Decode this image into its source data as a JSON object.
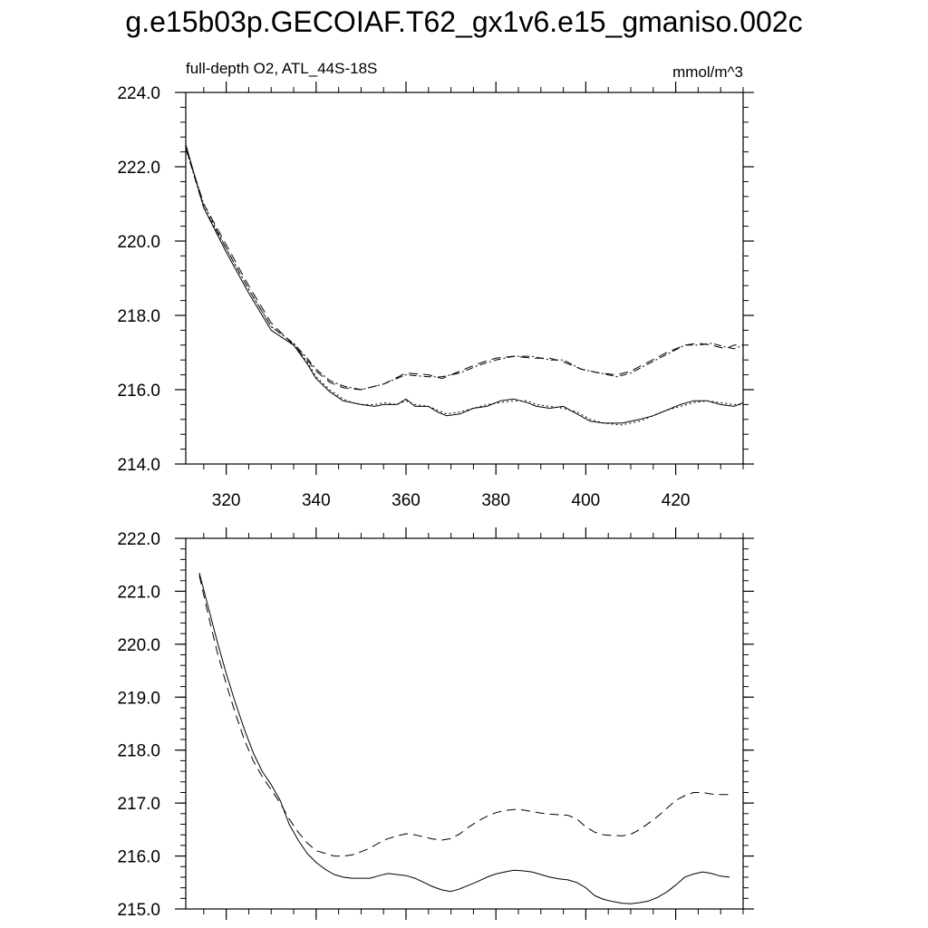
{
  "title": "g.e15b03p.GECOIAF.T62_gx1v6.e15_gmaniso.002c",
  "subtitle_left": "full-depth O2, ATL_44S-18S",
  "units": "mmol/m^3",
  "chart_data": [
    {
      "type": "line",
      "panel": "top",
      "xlim": [
        311,
        435
      ],
      "ylim": [
        214.0,
        224.0
      ],
      "xticks": [
        320,
        340,
        360,
        380,
        400,
        420
      ],
      "xtick_labels": [
        "320",
        "340",
        "360",
        "380",
        "400",
        "420"
      ],
      "yticks": [
        214,
        216,
        218,
        220,
        222,
        224
      ],
      "ytick_labels": [
        "214.0",
        "216.0",
        "218.0",
        "220.0",
        "222.0",
        "224.0"
      ],
      "series": [
        {
          "name": "solid",
          "dash": "none",
          "x": [
            311,
            315,
            320,
            325,
            330,
            335,
            338,
            340,
            343,
            346,
            348,
            350,
            353,
            355,
            358,
            360,
            362,
            365,
            367,
            369,
            372,
            375,
            378,
            381,
            384,
            387,
            389,
            392,
            395,
            398,
            401,
            404,
            408,
            412,
            415,
            418,
            421,
            424,
            427,
            430,
            433,
            435
          ],
          "y": [
            222.6,
            220.9,
            219.7,
            218.6,
            217.6,
            217.2,
            216.7,
            216.3,
            215.95,
            215.7,
            215.65,
            215.6,
            215.55,
            215.6,
            215.6,
            215.75,
            215.55,
            215.55,
            215.4,
            215.3,
            215.35,
            215.5,
            215.55,
            215.7,
            215.75,
            215.65,
            215.55,
            215.5,
            215.55,
            215.35,
            215.15,
            215.1,
            215.1,
            215.2,
            215.3,
            215.45,
            215.6,
            215.7,
            215.7,
            215.6,
            215.55,
            215.65
          ]
        },
        {
          "name": "solid-dotted",
          "dash": "2,3",
          "x": [
            311,
            315,
            320,
            325,
            330,
            335,
            338,
            340,
            343,
            346,
            348,
            350,
            353,
            355,
            358,
            360,
            362,
            365,
            367,
            369,
            372,
            375,
            378,
            381,
            384,
            387,
            389,
            392,
            395,
            398,
            401,
            404,
            408,
            412,
            415,
            418,
            421,
            424,
            427,
            430,
            433,
            435
          ],
          "y": [
            222.5,
            221.0,
            219.8,
            218.7,
            217.7,
            217.25,
            216.75,
            216.35,
            216.0,
            215.75,
            215.65,
            215.6,
            215.6,
            215.65,
            215.6,
            215.7,
            215.6,
            215.55,
            215.45,
            215.35,
            215.4,
            215.5,
            215.6,
            215.65,
            215.7,
            215.7,
            215.6,
            215.55,
            215.5,
            215.4,
            215.2,
            215.1,
            215.05,
            215.15,
            215.3,
            215.45,
            215.55,
            215.65,
            215.7,
            215.65,
            215.6,
            215.6
          ]
        },
        {
          "name": "dashed",
          "dash": "10,6",
          "x": [
            311,
            315,
            320,
            325,
            330,
            335,
            338,
            340,
            343,
            346,
            350,
            355,
            360,
            365,
            368,
            372,
            376,
            380,
            384,
            388,
            392,
            395,
            399,
            403,
            407,
            410,
            414,
            418,
            422,
            425,
            428,
            431,
            433,
            435
          ],
          "y": [
            222.5,
            221.0,
            219.9,
            218.8,
            217.8,
            217.2,
            216.8,
            216.5,
            216.2,
            216.05,
            216.0,
            216.15,
            216.45,
            216.4,
            216.3,
            216.5,
            216.7,
            216.85,
            216.9,
            216.85,
            216.85,
            216.75,
            216.55,
            216.45,
            216.4,
            216.5,
            216.75,
            217.0,
            217.2,
            217.25,
            217.2,
            217.1,
            217.2,
            217.2
          ]
        },
        {
          "name": "dash-dot",
          "dash": "8,3,2,3",
          "x": [
            311,
            315,
            320,
            325,
            330,
            335,
            338,
            340,
            343,
            346,
            350,
            355,
            360,
            365,
            368,
            372,
            376,
            380,
            384,
            388,
            392,
            395,
            399,
            403,
            407,
            410,
            414,
            418,
            422,
            425,
            428,
            431,
            433,
            435
          ],
          "y": [
            222.5,
            220.9,
            219.8,
            218.7,
            217.7,
            217.25,
            216.85,
            216.55,
            216.25,
            216.1,
            216.0,
            216.15,
            216.4,
            216.35,
            216.35,
            216.45,
            216.65,
            216.8,
            216.9,
            216.9,
            216.8,
            216.8,
            216.55,
            216.45,
            216.35,
            216.45,
            216.7,
            216.95,
            217.2,
            217.2,
            217.25,
            217.15,
            217.1,
            217.2
          ]
        }
      ]
    },
    {
      "type": "line",
      "panel": "bottom",
      "xlim": [
        311,
        435
      ],
      "ylim": [
        215.0,
        222.0
      ],
      "xticks": [
        320,
        340,
        360,
        380,
        400,
        420
      ],
      "xtick_labels": [],
      "yticks": [
        215,
        216,
        217,
        218,
        219,
        220,
        221,
        222
      ],
      "ytick_labels": [
        "215.0",
        "216.0",
        "217.0",
        "218.0",
        "219.0",
        "220.0",
        "221.0",
        "222.0"
      ],
      "series": [
        {
          "name": "solid",
          "dash": "none",
          "x": [
            314,
            316,
            318,
            320,
            322,
            324,
            326,
            328,
            330,
            332,
            334,
            336,
            338,
            340,
            342,
            344,
            346,
            348,
            350,
            352,
            354,
            356,
            358,
            360,
            362,
            364,
            366,
            368,
            370,
            372,
            374,
            376,
            378,
            380,
            382,
            384,
            386,
            388,
            390,
            392,
            394,
            396,
            398,
            400,
            402,
            404,
            406,
            408,
            410,
            412,
            414,
            416,
            418,
            420,
            422,
            424,
            426,
            428,
            430,
            432
          ],
          "y": [
            221.35,
            220.7,
            220.05,
            219.45,
            218.9,
            218.4,
            217.95,
            217.6,
            217.35,
            217.05,
            216.6,
            216.3,
            216.05,
            215.88,
            215.75,
            215.65,
            215.6,
            215.58,
            215.58,
            215.58,
            215.63,
            215.67,
            215.65,
            215.63,
            215.58,
            215.5,
            215.42,
            215.36,
            215.33,
            215.38,
            215.45,
            215.52,
            215.6,
            215.66,
            215.7,
            215.73,
            215.72,
            215.7,
            215.65,
            215.6,
            215.57,
            215.55,
            215.5,
            215.4,
            215.25,
            215.18,
            215.14,
            215.11,
            215.1,
            215.12,
            215.15,
            215.22,
            215.32,
            215.45,
            215.6,
            215.66,
            215.7,
            215.67,
            215.62,
            215.6
          ]
        },
        {
          "name": "dashed",
          "dash": "10,6",
          "x": [
            314,
            316,
            318,
            320,
            322,
            324,
            326,
            328,
            330,
            332,
            334,
            336,
            338,
            340,
            342,
            344,
            346,
            348,
            350,
            352,
            354,
            356,
            358,
            360,
            362,
            364,
            366,
            368,
            370,
            372,
            374,
            376,
            378,
            380,
            382,
            384,
            386,
            388,
            390,
            392,
            394,
            396,
            398,
            400,
            402,
            404,
            406,
            408,
            410,
            412,
            414,
            416,
            418,
            420,
            422,
            424,
            426,
            428,
            430,
            432
          ],
          "y": [
            221.3,
            220.55,
            219.85,
            219.25,
            218.7,
            218.2,
            217.8,
            217.5,
            217.25,
            217.0,
            216.7,
            216.45,
            216.25,
            216.1,
            216.05,
            216.0,
            216.0,
            216.02,
            216.08,
            216.15,
            216.25,
            216.33,
            216.38,
            216.42,
            216.4,
            216.36,
            216.32,
            216.3,
            216.33,
            216.42,
            216.55,
            216.66,
            216.75,
            216.82,
            216.86,
            216.88,
            216.87,
            216.84,
            216.81,
            216.79,
            216.78,
            216.77,
            216.7,
            216.55,
            216.45,
            216.4,
            216.39,
            216.38,
            216.41,
            216.5,
            216.62,
            216.75,
            216.9,
            217.05,
            217.14,
            217.2,
            217.2,
            217.17,
            217.16,
            217.16
          ]
        }
      ]
    }
  ]
}
